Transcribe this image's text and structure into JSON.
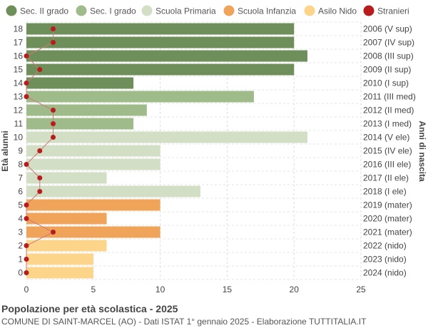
{
  "chart_data": {
    "type": "bar",
    "orientation": "horizontal",
    "title": "Popolazione per età scolastica - 2025",
    "subtitle": "COMUNE DI SAINT-MARCEL (AO) - Dati ISTAT 1° gennaio 2025 - Elaborazione TUTTITALIA.IT",
    "ylabel_left": "Età alunni",
    "ylabel_right": "Anni di nascita",
    "xlim": [
      0,
      25
    ],
    "xticks": [
      0,
      5,
      10,
      15,
      20,
      25
    ],
    "grid": true,
    "legend_position": "top",
    "legend": [
      {
        "label": "Sec. II grado",
        "color": "#6e8f5a"
      },
      {
        "label": "Sec. I grado",
        "color": "#9fbb8a"
      },
      {
        "label": "Scuola Primaria",
        "color": "#d3dfc4"
      },
      {
        "label": "Scuola Infanzia",
        "color": "#f0a45a"
      },
      {
        "label": "Asilo Nido",
        "color": "#fdd58a"
      },
      {
        "label": "Stranieri",
        "color": "#b81c1c"
      }
    ],
    "rows": [
      {
        "age": "18",
        "birth": "2006 (V sup)",
        "value": 20,
        "group": 0,
        "stranieri": 2
      },
      {
        "age": "17",
        "birth": "2007 (IV sup)",
        "value": 20,
        "group": 0,
        "stranieri": 2
      },
      {
        "age": "16",
        "birth": "2008 (III sup)",
        "value": 21,
        "group": 0,
        "stranieri": 0
      },
      {
        "age": "15",
        "birth": "2009 (II sup)",
        "value": 20,
        "group": 0,
        "stranieri": 1
      },
      {
        "age": "14",
        "birth": "2010 (I sup)",
        "value": 8,
        "group": 0,
        "stranieri": 0
      },
      {
        "age": "13",
        "birth": "2011 (III med)",
        "value": 17,
        "group": 1,
        "stranieri": 0
      },
      {
        "age": "12",
        "birth": "2012 (II med)",
        "value": 9,
        "group": 1,
        "stranieri": 2
      },
      {
        "age": "11",
        "birth": "2013 (I med)",
        "value": 8,
        "group": 1,
        "stranieri": 2
      },
      {
        "age": "10",
        "birth": "2014 (V ele)",
        "value": 21,
        "group": 2,
        "stranieri": 2
      },
      {
        "age": "9",
        "birth": "2015 (IV ele)",
        "value": 10,
        "group": 2,
        "stranieri": 1
      },
      {
        "age": "8",
        "birth": "2016 (III ele)",
        "value": 10,
        "group": 2,
        "stranieri": 0
      },
      {
        "age": "7",
        "birth": "2017 (II ele)",
        "value": 6,
        "group": 2,
        "stranieri": 1
      },
      {
        "age": "6",
        "birth": "2018 (I ele)",
        "value": 13,
        "group": 2,
        "stranieri": 1
      },
      {
        "age": "5",
        "birth": "2019 (mater)",
        "value": 10,
        "group": 3,
        "stranieri": 0
      },
      {
        "age": "4",
        "birth": "2020 (mater)",
        "value": 6,
        "group": 3,
        "stranieri": 0
      },
      {
        "age": "3",
        "birth": "2021 (mater)",
        "value": 10,
        "group": 3,
        "stranieri": 2
      },
      {
        "age": "2",
        "birth": "2022 (nido)",
        "value": 6,
        "group": 4,
        "stranieri": 0
      },
      {
        "age": "1",
        "birth": "2023 (nido)",
        "value": 5,
        "group": 4,
        "stranieri": 0
      },
      {
        "age": "0",
        "birth": "2024 (nido)",
        "value": 5,
        "group": 4,
        "stranieri": 0
      }
    ]
  }
}
